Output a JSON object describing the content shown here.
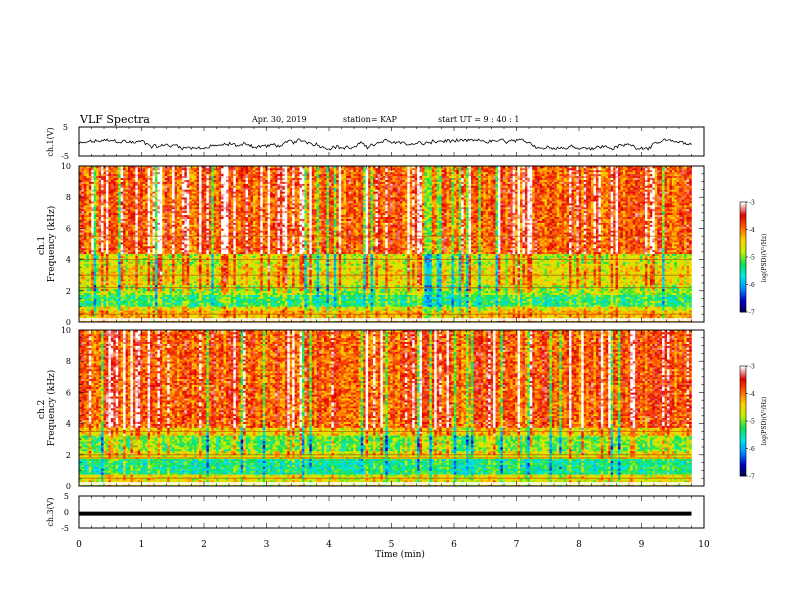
{
  "header": {
    "title": "VLF Spectra",
    "date": "Apr. 30, 2019",
    "station": "station= KAP",
    "start": "start  UT  =   9  : 40 : 1"
  },
  "chart_data": [
    {
      "type": "line",
      "panel": "ch1-waveform",
      "ylabel": "ch.1(V)",
      "ylim": [
        -5,
        5
      ],
      "yticks": [
        "5",
        "-5"
      ],
      "xlim": [
        0,
        10
      ],
      "samples": 480,
      "approx_range": [
        -2.5,
        0.5
      ],
      "color": "#000000"
    },
    {
      "type": "heatmap",
      "panel": "ch1-spectrogram",
      "ylabel": "ch.1\nFrequency  (kHz)",
      "xlim": [
        0,
        10
      ],
      "ylim": [
        0,
        10
      ],
      "yticks": [
        "0",
        "2",
        "4",
        "6",
        "8",
        "10"
      ],
      "data_end_min": 9.8,
      "time_bins": 250,
      "freq_bins": 80,
      "band_levels_log": [
        {
          "f": [
            0.0,
            0.7
          ],
          "level": -4.3
        },
        {
          "f": [
            0.7,
            1.0
          ],
          "level": -4.6
        },
        {
          "f": [
            1.0,
            1.7
          ],
          "level": -5.3
        },
        {
          "f": [
            1.7,
            2.4
          ],
          "level": -4.9
        },
        {
          "f": [
            2.4,
            3.6
          ],
          "level": -4.5
        },
        {
          "f": [
            3.6,
            4.4
          ],
          "level": -4.7
        },
        {
          "f": [
            4.4,
            10.0
          ],
          "level": -3.8
        }
      ],
      "lines_khz": [
        0.5,
        2.2,
        3.0,
        4.0,
        5.5
      ],
      "colorbar": {
        "label": "log(PSD)(V²/Hz)",
        "range": [
          -7,
          -3
        ],
        "ticks": [
          "-3",
          "-4",
          "-5",
          "-6",
          "-7"
        ],
        "colormap": [
          "#000040",
          "#0000c8",
          "#0090ff",
          "#00e8e8",
          "#10e050",
          "#c8f000",
          "#ffd000",
          "#ff6000",
          "#e00000",
          "#ffffff"
        ]
      }
    },
    {
      "type": "heatmap",
      "panel": "ch2-spectrogram",
      "ylabel": "ch.2\nFrequency  (kHz)",
      "xlim": [
        0,
        10
      ],
      "ylim": [
        0,
        10
      ],
      "yticks": [
        "0",
        "2",
        "4",
        "6",
        "8",
        "10"
      ],
      "data_end_min": 9.8,
      "time_bins": 250,
      "freq_bins": 80,
      "band_levels_log": [
        {
          "f": [
            0.0,
            0.8
          ],
          "level": -4.6
        },
        {
          "f": [
            0.8,
            1.8
          ],
          "level": -5.4
        },
        {
          "f": [
            1.8,
            2.3
          ],
          "level": -4.6
        },
        {
          "f": [
            2.3,
            3.2
          ],
          "level": -5.0
        },
        {
          "f": [
            3.2,
            3.8
          ],
          "level": -4.4
        },
        {
          "f": [
            3.8,
            10.0
          ],
          "level": -3.8
        }
      ],
      "lines_khz": [
        0.5,
        1.8,
        2.0,
        3.5
      ],
      "colorbar": {
        "label": "log(PSD)(V²/Hz)",
        "range": [
          -7,
          -3
        ],
        "ticks": [
          "-3",
          "-4",
          "-5",
          "-6",
          "-7"
        ],
        "colormap": [
          "#000040",
          "#0000c8",
          "#0090ff",
          "#00e8e8",
          "#10e050",
          "#c8f000",
          "#ffd000",
          "#ff6000",
          "#e00000",
          "#ffffff"
        ]
      }
    },
    {
      "type": "line",
      "panel": "ch3-waveform",
      "ylabel": "ch.3(V)",
      "ylim": [
        -5,
        5
      ],
      "yticks": [
        "5",
        "0",
        "-5"
      ],
      "xlim": [
        0,
        10
      ],
      "constant_value": -0.5,
      "color": "#000000"
    }
  ],
  "xaxis": {
    "label": "Time  (min)",
    "ticks": [
      "0",
      "1",
      "2",
      "3",
      "4",
      "5",
      "6",
      "7",
      "8",
      "9",
      "10"
    ]
  }
}
